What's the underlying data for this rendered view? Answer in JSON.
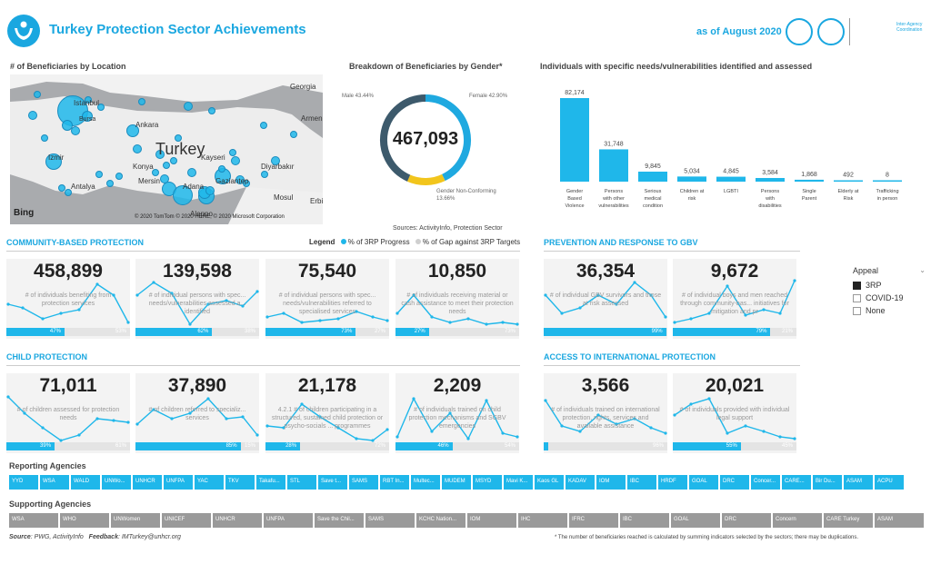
{
  "header": {
    "title": "Turkey Protection Sector Achievements",
    "date": "as of August 2020",
    "iasc_text": "Inter-Agency Coordination"
  },
  "location": {
    "title": "# of Beneficiaries by Location",
    "country_label": "Turkey",
    "city_labels": [
      "Istanbul",
      "Bursa",
      "Ankara",
      "Izmir",
      "Konya",
      "Kayseri",
      "Antalya",
      "Mersin",
      "Adana",
      "Gaziantep",
      "Diyarbakır",
      "Georgia",
      "Armenia",
      "Mosul",
      "Erbil",
      "Aleppo"
    ],
    "bing": "Bing",
    "attribution": "© 2020 TomTom © 2020 HERE, © 2020 Microsoft Corporation"
  },
  "gender": {
    "title": "Breakdown of Beneficiaries by Gender*",
    "total": "467,093",
    "male_label": "Male 43.44%",
    "female_label": "Female 42.90%",
    "nonconf_label": "Gender Non-Conforming",
    "nonconf_pct": "13.66%",
    "male": 43.44,
    "female": 42.9,
    "nonconf": 13.66,
    "source": "Sources: ActivityInfo, Protection Sector"
  },
  "needs": {
    "title": "Individuals with specific needs/vulnerabilities identified and assessed",
    "chart_data": {
      "type": "bar",
      "categories": [
        "Gender Based Violence",
        "Persons with other vulnerabilities",
        "Serious medical condition",
        "Children at risk",
        "LGBTI",
        "Persons with disabilities",
        "Single Parent",
        "Elderly at Risk",
        "Trafficking in person"
      ],
      "values": [
        82174,
        31748,
        9845,
        5034,
        4845,
        3584,
        1868,
        492,
        8
      ],
      "value_labels": [
        "82,174",
        "31,748",
        "9,845",
        "5,034",
        "4,845",
        "3,584",
        "1,868",
        "492",
        "8"
      ]
    }
  },
  "legend": {
    "label": "Legend",
    "progress": "% of 3RP Progress",
    "gap": "% of Gap against 3RP Targets"
  },
  "sections": {
    "cbp": "COMMUNITY-BASED PROTECTION",
    "gbv": "PREVENTION AND RESPONSE TO GBV",
    "child": "CHILD PROTECTION",
    "access": "ACCESS TO INTERNATIONAL PROTECTION"
  },
  "cards": [
    {
      "value": "458,899",
      "desc": "# of individuals benefiting from protection services",
      "progress": "47%",
      "gap": "53%",
      "pct": 0.47
    },
    {
      "value": "139,598",
      "desc": "# of individual persons with spec... needs/vulnerabilities assessed a... identified",
      "progress": "62%",
      "gap": "38%",
      "pct": 0.62
    },
    {
      "value": "75,540",
      "desc": "# of individual persons with spec... needs/vulnerabilities referred to specialised services",
      "progress": "73%",
      "gap": "27%",
      "pct": 0.73
    },
    {
      "value": "10,850",
      "desc": "# of individuals receiving material or cash assistance to meet their protection needs",
      "progress": "27%",
      "gap": "73%",
      "pct": 0.27
    },
    {
      "value": "36,354",
      "desc": "# of individual GBV survivors and those at risk assessed",
      "progress": "99%",
      "gap": "",
      "pct": 0.99
    },
    {
      "value": "9,672",
      "desc": "# of individual boys and men reached through community-bas... initiatives for mitigation and pr",
      "progress": "79%",
      "gap": "21%",
      "pct": 0.79
    },
    {
      "value": "71,011",
      "desc": "# of children assessed for protection needs",
      "progress": "39%",
      "gap": "61%",
      "pct": 0.39
    },
    {
      "value": "37,890",
      "desc": "# of children referred to specializ... services",
      "progress": "85%",
      "gap": "15%",
      "pct": 0.85
    },
    {
      "value": "21,178",
      "desc": "4.2.1 # of children participating in a structured, sustained child protection or psycho-socials ... programmes",
      "progress": "28%",
      "gap": "72%",
      "pct": 0.28
    },
    {
      "value": "2,209",
      "desc": "# of individuals trained on child protection mechanisms and SGBV emergencies",
      "progress": "46%",
      "gap": "54%",
      "pct": 0.46
    },
    {
      "value": "3,566",
      "desc": "# of individuals trained on international protection, rights, services and available assistance",
      "progress": "",
      "gap": "96%",
      "pct": 0.04
    },
    {
      "value": "20,021",
      "desc": "# of individuals provided with individual legal support",
      "progress": "55%",
      "gap": "45%",
      "pct": 0.55
    }
  ],
  "slicer": {
    "title": "Appeal",
    "options": [
      {
        "label": "3RP",
        "checked": true
      },
      {
        "label": "COVID-19",
        "checked": false
      },
      {
        "label": "None",
        "checked": false
      }
    ]
  },
  "reporting": {
    "title": "Reporting Agencies",
    "items": [
      "YYD",
      "WSA",
      "WALD",
      "UNWo...",
      "UNHCR",
      "UNFPA",
      "YAC",
      "TKV",
      "Takafu...",
      "STL",
      "Save t...",
      "SAMS",
      "RBT In...",
      "Multec...",
      "MUDEM",
      "MSYD",
      "Mavi K...",
      "Kaos GL",
      "KADAV",
      "IOM",
      "IBC",
      "HRDF",
      "GOAL",
      "DRC",
      "Concer...",
      "CARE...",
      "Bir Du...",
      "ASAM",
      "ACPU"
    ]
  },
  "supporting": {
    "title": "Supporting Agencies",
    "items": [
      "WSA",
      "WHO",
      "UNWomen",
      "UNICEF",
      "UNHCR",
      "UNFPA",
      "Save the Chil...",
      "SAMS",
      "KCHC Nation...",
      "IOM",
      "IHC",
      "IFRC",
      "IBC",
      "GOAL",
      "DRC",
      "Concern",
      "CARE Turkey",
      "ASAM"
    ]
  },
  "footer": {
    "source_label": "Source",
    "source_text": ": PWG, ActivityInfo",
    "feedback_label": "Feedback",
    "feedback_text": ": IMTurkey@unhcr.org",
    "note": "* The number of beneficiaries reached is calculated by summing indicators selected by the sectors; there may be duplications."
  },
  "colors": {
    "accent": "#1aa7e0",
    "bar": "#1fb7ea",
    "gap": "#e4e4e4",
    "donut_male": "#3d5a6c",
    "donut_female": "#1fa9e0",
    "donut_nonconf": "#f2c51c"
  }
}
